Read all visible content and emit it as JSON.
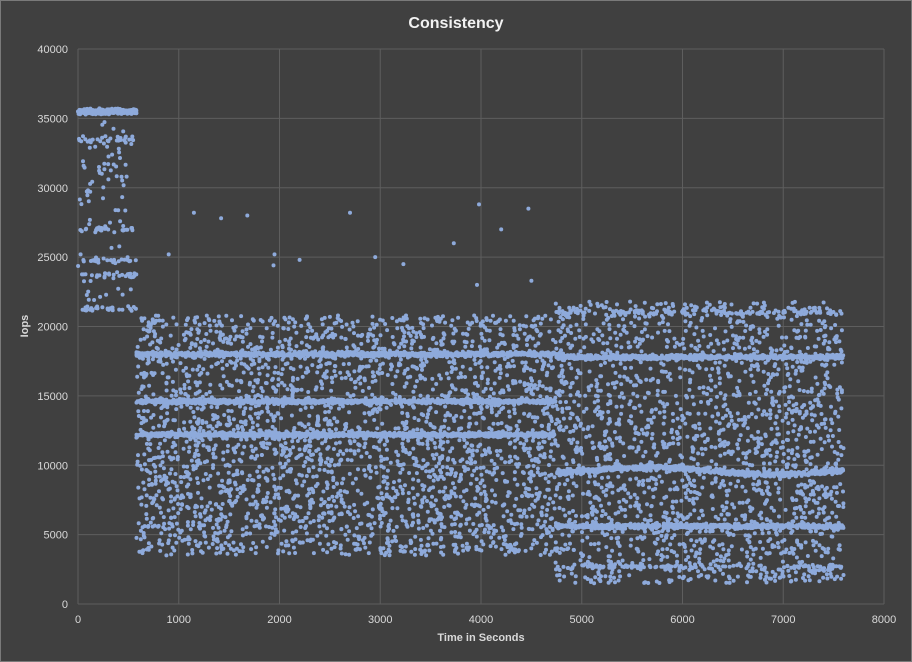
{
  "chart_data": {
    "type": "scatter",
    "title": "Consistency",
    "xlabel": "Time in Seconds",
    "ylabel": "Iops",
    "xlim": [
      0,
      8000
    ],
    "ylim": [
      0,
      40000
    ],
    "x_ticks": [
      "0",
      "1000",
      "2000",
      "3000",
      "4000",
      "5000",
      "6000",
      "7000",
      "8000"
    ],
    "y_ticks": [
      "0",
      "5000",
      "10000",
      "15000",
      "20000",
      "25000",
      "30000",
      "35000",
      "40000"
    ],
    "grid": true,
    "legend": "none",
    "marker_color": "#8eaadb",
    "series": [
      {
        "segments": [
          {
            "x_range": [
              0,
              580
            ],
            "dense_bands": [
              35500
            ],
            "sparse_range": [
              21000,
              35500
            ],
            "sparse_bands": [
              24800,
              23700,
              21300,
              27000,
              33500
            ]
          },
          {
            "x_range": [
              580,
              4740
            ],
            "dense_bands": [
              12200,
              14600,
              18000
            ],
            "sparse_range": [
              3500,
              20800
            ]
          },
          {
            "x_range": [
              4740,
              7600
            ],
            "dense_bands": [
              5600,
              9600,
              17800
            ],
            "sparse_range": [
              1500,
              21800
            ],
            "sparse_bands": [
              2700,
              21000
            ]
          }
        ],
        "outliers": [
          [
            1150,
            28200
          ],
          [
            1420,
            27800
          ],
          [
            1680,
            28000
          ],
          [
            2700,
            28200
          ],
          [
            3980,
            28800
          ],
          [
            4470,
            28500
          ],
          [
            4200,
            27000
          ],
          [
            3730,
            26000
          ],
          [
            2950,
            25000
          ],
          [
            1950,
            25200
          ],
          [
            2200,
            24800
          ],
          [
            3230,
            24500
          ],
          [
            900,
            25200
          ],
          [
            4500,
            23300
          ],
          [
            1940,
            24400
          ],
          [
            3960,
            23000
          ]
        ]
      }
    ]
  }
}
